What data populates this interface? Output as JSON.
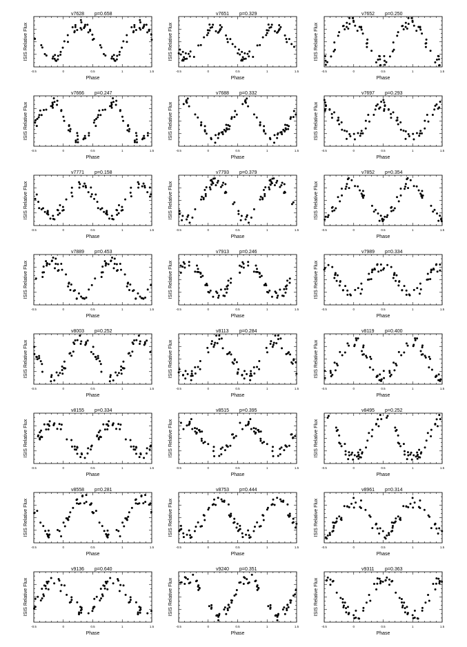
{
  "chart_data": [
    {
      "type": "scatter",
      "star": "v7628",
      "period": "p=0.658",
      "xlabel": "Phase",
      "ylabel": "ISIS Relative Flux",
      "xlim": [
        -0.5,
        1.5
      ],
      "xticks": [
        "-0.5",
        "0",
        "0.5",
        "1",
        "1.5"
      ],
      "seed": 1
    },
    {
      "type": "scatter",
      "star": "v7651",
      "period": "p=0.329",
      "xlabel": "Phase",
      "ylabel": "ISIS Relative Flux",
      "xlim": [
        -0.5,
        1.5
      ],
      "xticks": [
        "-0.5",
        "0",
        "0.5",
        "1",
        "1.5"
      ],
      "seed": 2
    },
    {
      "type": "scatter",
      "star": "v7652",
      "period": "p=0.250",
      "xlabel": "Phase",
      "ylabel": "ISIS Relative Flux",
      "xlim": [
        -0.5,
        1.5
      ],
      "xticks": [
        "-0.5",
        "0",
        "0.5",
        "1",
        "1.5"
      ],
      "seed": 3
    },
    {
      "type": "scatter",
      "star": "v7666",
      "period": "p=0.247",
      "xlabel": "Phase",
      "ylabel": "ISIS Relative Flux",
      "xlim": [
        -0.5,
        1.5
      ],
      "xticks": [
        "-0.5",
        "0",
        "0.5",
        "1",
        "1.5"
      ],
      "seed": 4
    },
    {
      "type": "scatter",
      "star": "v7688",
      "period": "p=0.332",
      "xlabel": "Phase",
      "ylabel": "ISIS Relative Flux",
      "xlim": [
        -0.5,
        1.5
      ],
      "xticks": [
        "-0.5",
        "0",
        "0.5",
        "1",
        "1.5"
      ],
      "seed": 5
    },
    {
      "type": "scatter",
      "star": "v7697",
      "period": "p=0.293",
      "xlabel": "Phase",
      "ylabel": "ISIS Relative Flux",
      "xlim": [
        -0.5,
        1.5
      ],
      "xticks": [
        "-0.5",
        "0",
        "0.5",
        "1",
        "1.5"
      ],
      "seed": 6
    },
    {
      "type": "scatter",
      "star": "v7771",
      "period": "p=0.158",
      "xlabel": "Phase",
      "ylabel": "ISIS Relative Flux",
      "xlim": [
        -0.5,
        1.5
      ],
      "xticks": [
        "-0.5",
        "0",
        "0.5",
        "1",
        "1.5"
      ],
      "seed": 7
    },
    {
      "type": "scatter",
      "star": "v7793",
      "period": "p=0.379",
      "xlabel": "Phase",
      "ylabel": "ISIS Relative Flux",
      "xlim": [
        -0.5,
        1.5
      ],
      "xticks": [
        "-0.5",
        "0",
        "0.5",
        "1",
        "1.5"
      ],
      "seed": 8
    },
    {
      "type": "scatter",
      "star": "v7852",
      "period": "p=0.354",
      "xlabel": "Phase",
      "ylabel": "ISIS Relative Flux",
      "xlim": [
        -0.5,
        1.5
      ],
      "xticks": [
        "-0.5",
        "0",
        "0.5",
        "1",
        "1.5"
      ],
      "seed": 9
    },
    {
      "type": "scatter",
      "star": "v7889",
      "period": "p=0.453",
      "xlabel": "Phase",
      "ylabel": "ISIS Relative Flux",
      "xlim": [
        -0.5,
        1.5
      ],
      "xticks": [
        "-0.5",
        "0",
        "0.5",
        "1",
        "1.5"
      ],
      "seed": 10
    },
    {
      "type": "scatter",
      "star": "v7913",
      "period": "p=0.246",
      "xlabel": "Phase",
      "ylabel": "ISIS Relative Flux",
      "xlim": [
        -0.5,
        1.5
      ],
      "xticks": [
        "-0.5",
        "0",
        "0.5",
        "1",
        "1.5"
      ],
      "seed": 11
    },
    {
      "type": "scatter",
      "star": "v7989",
      "period": "p=0.334",
      "xlabel": "Phase",
      "ylabel": "ISIS Relative Flux",
      "xlim": [
        -0.5,
        1.5
      ],
      "xticks": [
        "-0.5",
        "0",
        "0.5",
        "1",
        "1.5"
      ],
      "seed": 12
    },
    {
      "type": "scatter",
      "star": "v8003",
      "period": "p=0.252",
      "xlabel": "Phase",
      "ylabel": "ISIS Relative Flux",
      "xlim": [
        -0.5,
        1.5
      ],
      "xticks": [
        "-0.5",
        "0",
        "0.5",
        "1",
        "1.5"
      ],
      "seed": 13
    },
    {
      "type": "scatter",
      "star": "v8113",
      "period": "p=0.284",
      "xlabel": "Phase",
      "ylabel": "ISIS Relative Flux",
      "xlim": [
        -0.5,
        1.5
      ],
      "xticks": [
        "-0.5",
        "0",
        "0.5",
        "1",
        "1.5"
      ],
      "seed": 14
    },
    {
      "type": "scatter",
      "star": "v8119",
      "period": "p=0.400",
      "xlabel": "Phase",
      "ylabel": "ISIS Relative Flux",
      "xlim": [
        -0.5,
        1.5
      ],
      "xticks": [
        "-0.5",
        "0",
        "0.5",
        "1",
        "1.5"
      ],
      "seed": 15
    },
    {
      "type": "scatter",
      "star": "v8155",
      "period": "p=0.334",
      "xlabel": "Phase",
      "ylabel": "ISIS Relative Flux",
      "xlim": [
        -0.5,
        1.5
      ],
      "xticks": [
        "-0.5",
        "0",
        "0.5",
        "1",
        "1.5"
      ],
      "seed": 16
    },
    {
      "type": "scatter",
      "star": "v8515",
      "period": "p=0.395",
      "xlabel": "Phase",
      "ylabel": "ISIS Relative Flux",
      "xlim": [
        -0.5,
        1.5
      ],
      "xticks": [
        "-0.5",
        "0",
        "0.5",
        "1",
        "1.5"
      ],
      "seed": 17
    },
    {
      "type": "scatter",
      "star": "v8495",
      "period": "p=0.252",
      "xlabel": "Phase",
      "ylabel": "ISIS Relative Flux",
      "xlim": [
        -0.5,
        1.5
      ],
      "xticks": [
        "-0.5",
        "0",
        "0.5",
        "1",
        "1.5"
      ],
      "seed": 18
    },
    {
      "type": "scatter",
      "star": "v8558",
      "period": "p=0.281",
      "xlabel": "Phase",
      "ylabel": "ISIS Relative Flux",
      "xlim": [
        -0.5,
        1.5
      ],
      "xticks": [
        "-0.5",
        "0",
        "0.5",
        "1",
        "1.5"
      ],
      "seed": 19
    },
    {
      "type": "scatter",
      "star": "v8753",
      "period": "p=0.444",
      "xlabel": "Phase",
      "ylabel": "ISIS Relative Flux",
      "xlim": [
        -0.5,
        1.5
      ],
      "xticks": [
        "-0.5",
        "0",
        "0.5",
        "1",
        "1.5"
      ],
      "seed": 20
    },
    {
      "type": "scatter",
      "star": "v8961",
      "period": "p=0.314",
      "xlabel": "Phase",
      "ylabel": "ISIS Relative Flux",
      "xlim": [
        -0.5,
        1.5
      ],
      "xticks": [
        "-0.5",
        "0",
        "0.5",
        "1",
        "1.5"
      ],
      "seed": 21
    },
    {
      "type": "scatter",
      "star": "v9136",
      "period": "p=0.640",
      "xlabel": "Phase",
      "ylabel": "ISIS Relative Flux",
      "xlim": [
        -0.5,
        1.5
      ],
      "xticks": [
        "-0.5",
        "0",
        "0.5",
        "1",
        "1.5"
      ],
      "seed": 22
    },
    {
      "type": "scatter",
      "star": "v9240",
      "period": "p=0.351",
      "xlabel": "Phase",
      "ylabel": "ISIS Relative Flux",
      "xlim": [
        -0.5,
        1.5
      ],
      "xticks": [
        "-0.5",
        "0",
        "0.5",
        "1",
        "1.5"
      ],
      "seed": 23
    },
    {
      "type": "scatter",
      "star": "v9311",
      "period": "p=0.363",
      "xlabel": "Phase",
      "ylabel": "ISIS Relative Flux",
      "xlim": [
        -0.5,
        1.5
      ],
      "xticks": [
        "-0.5",
        "0",
        "0.5",
        "1",
        "1.5"
      ],
      "seed": 24
    }
  ]
}
